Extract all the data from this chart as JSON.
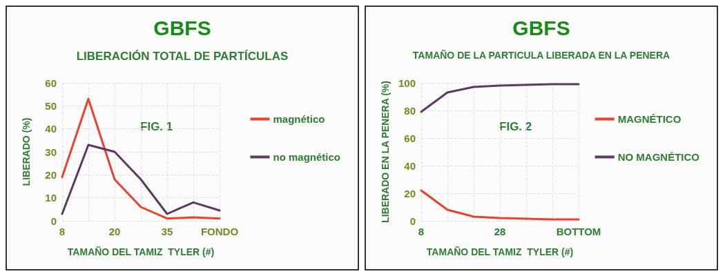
{
  "chart_data": [
    {
      "type": "line",
      "title": "GBFS",
      "subtitle": "LIBERACIÓN TOTAL DE PARTÍCULAS",
      "xlabel": "TAMAÑO DEL TAMIZ  TYLER (#)",
      "ylabel": "LIBERADO (%)",
      "annotations": [
        "FIG. 1"
      ],
      "categories": [
        "8",
        null,
        "20",
        null,
        "35",
        null,
        "FONDO"
      ],
      "series": [
        {
          "name": "magnético",
          "color": "#e8412c",
          "values": [
            19,
            53,
            18,
            6,
            1,
            1.5,
            1
          ]
        },
        {
          "name": "no magnético",
          "color": "#5a3a5e",
          "values": [
            3,
            33,
            30,
            18,
            3,
            8,
            4.5
          ]
        }
      ],
      "ylim": [
        0,
        60
      ],
      "yticks": [
        0,
        10,
        20,
        30,
        40,
        50,
        60
      ],
      "grid": true,
      "legend": "right",
      "marker": "none",
      "line_style": "solid"
    },
    {
      "type": "line",
      "title": "GBFS",
      "subtitle": "TAMAÑO DE LA PARTICULA LIBERADA EN LA PENERA",
      "xlabel": "TAMAÑO DEL TAMIZ  TYLER (#)",
      "ylabel": "LIBERADO EN LA PENERA (%)",
      "annotations": [
        "FIG. 2"
      ],
      "categories": [
        "8",
        null,
        null,
        "28",
        null,
        null,
        "BOTTOM"
      ],
      "series": [
        {
          "name": "MAGNÉTICO",
          "color": "#e8412c",
          "values": [
            22,
            8,
            3,
            2,
            1.5,
            1,
            1
          ]
        },
        {
          "name": "NO MAGNÉTICO",
          "color": "#5a3a5e",
          "values": [
            79,
            93,
            97,
            98,
            98.5,
            99,
            99
          ]
        }
      ],
      "ylim": [
        0,
        100
      ],
      "yticks": [
        0,
        20,
        40,
        60,
        80,
        100
      ],
      "grid": true,
      "legend": "right",
      "marker": "none",
      "line_style": "solid"
    }
  ]
}
